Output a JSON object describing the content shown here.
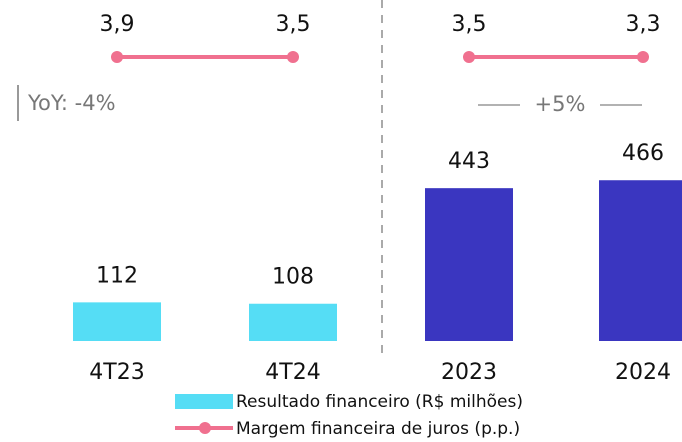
{
  "chart_data": {
    "type": "bar",
    "categories": [
      "4T23",
      "4T24",
      "2023",
      "2024"
    ],
    "series": [
      {
        "name": "Resultado financeiro (R$ milhões)",
        "type": "bar",
        "colors": [
          "#55ddf5",
          "#55ddf5",
          "#3a36c0",
          "#3a36c0"
        ],
        "values": [
          112,
          108,
          443,
          466
        ]
      },
      {
        "name": "Margem financeira de juros (p.p.)",
        "type": "line",
        "color": "#f0708f",
        "values": [
          3.9,
          3.5,
          3.5,
          3.3
        ],
        "value_labels": [
          "3,9",
          "3,5",
          "3,5",
          "3,3"
        ]
      }
    ],
    "annotations": [
      "YoY: -4%",
      "+5%"
    ]
  }
}
